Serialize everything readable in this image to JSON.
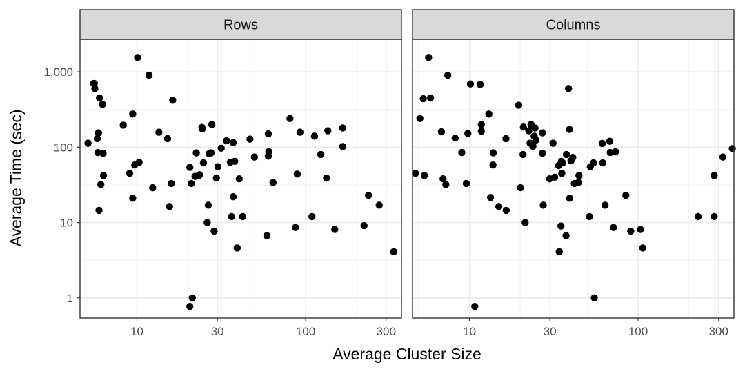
{
  "chart_data": {
    "type": "scatter",
    "xlabel": "Average Cluster Size",
    "ylabel": "Average Time (sec)",
    "x_scale": "log10",
    "y_scale": "log10",
    "xlim": [
      4.6,
      370
    ],
    "ylim": [
      0.54,
      2700
    ],
    "x_ticks": [
      {
        "value": 10,
        "label": "10"
      },
      {
        "value": 30,
        "label": "30"
      },
      {
        "value": 100,
        "label": "100"
      },
      {
        "value": 300,
        "label": "300"
      }
    ],
    "y_ticks": [
      {
        "value": 1,
        "label": "1"
      },
      {
        "value": 10,
        "label": "10"
      },
      {
        "value": 100,
        "label": "100"
      },
      {
        "value": 1000,
        "label": "1,000"
      }
    ],
    "x_minor_gridlines": [
      5,
      20,
      50,
      200
    ],
    "y_minor_gridlines": [
      3.16,
      31.6,
      316
    ],
    "grid": true,
    "point_color": "#000000",
    "panel_strip_fill": "#d9d9d9",
    "facets": [
      {
        "name": "Rows",
        "points": [
          [
            5.13,
            113
          ],
          [
            5.54,
            700
          ],
          [
            5.59,
            700
          ],
          [
            5.63,
            600
          ],
          [
            5.82,
            130
          ],
          [
            5.87,
            85
          ],
          [
            5.92,
            155
          ],
          [
            5.96,
            14.5
          ],
          [
            6.0,
            450
          ],
          [
            6.11,
            32
          ],
          [
            6.25,
            370
          ],
          [
            6.3,
            83
          ],
          [
            6.34,
            42
          ],
          [
            8.3,
            196
          ],
          [
            9.06,
            45
          ],
          [
            9.44,
            275
          ],
          [
            9.44,
            21
          ],
          [
            9.7,
            58
          ],
          [
            10.1,
            1550
          ],
          [
            10.3,
            63
          ],
          [
            11.8,
            900
          ],
          [
            12.4,
            29
          ],
          [
            13.5,
            158
          ],
          [
            15.2,
            130
          ],
          [
            15.6,
            16.3
          ],
          [
            16.0,
            33
          ],
          [
            16.3,
            420
          ],
          [
            20.6,
            0.77
          ],
          [
            20.6,
            54
          ],
          [
            21.0,
            33
          ],
          [
            21.3,
            1.0
          ],
          [
            22.1,
            41
          ],
          [
            22.5,
            84
          ],
          [
            23.3,
            42
          ],
          [
            23.5,
            43
          ],
          [
            24.3,
            183
          ],
          [
            24.4,
            175
          ],
          [
            24.8,
            62
          ],
          [
            26.1,
            10
          ],
          [
            26.5,
            17
          ],
          [
            26.8,
            82
          ],
          [
            27.5,
            84
          ],
          [
            27.8,
            200
          ],
          [
            28.7,
            7.7
          ],
          [
            29.6,
            39
          ],
          [
            30.2,
            55
          ],
          [
            31.6,
            97
          ],
          [
            34.0,
            122
          ],
          [
            35.8,
            63
          ],
          [
            36.4,
            12
          ],
          [
            37.2,
            115
          ],
          [
            37.2,
            22
          ],
          [
            38.0,
            65
          ],
          [
            39.3,
            4.6
          ],
          [
            40.4,
            38
          ],
          [
            42.3,
            12
          ],
          [
            46.8,
            128
          ],
          [
            49.7,
            74
          ],
          [
            59.0,
            6.7
          ],
          [
            60.1,
            76
          ],
          [
            60.1,
            150
          ],
          [
            60.5,
            87
          ],
          [
            64.1,
            34
          ],
          [
            80.8,
            240
          ],
          [
            87.1,
            8.6
          ],
          [
            89.2,
            44
          ],
          [
            92.6,
            158
          ],
          [
            109.1,
            12
          ],
          [
            112.9,
            140
          ],
          [
            123.1,
            80
          ],
          [
            133.0,
            39
          ],
          [
            135.5,
            165
          ],
          [
            148.9,
            8.1
          ],
          [
            166.0,
            102
          ],
          [
            166.0,
            180
          ],
          [
            222.0,
            9.1
          ],
          [
            236.0,
            23
          ],
          [
            273.0,
            17
          ],
          [
            333.0,
            4.1
          ]
        ]
      },
      {
        "name": "Columns",
        "points": [
          [
            4.79,
            45
          ],
          [
            5.09,
            240
          ],
          [
            5.33,
            440
          ],
          [
            5.41,
            42
          ],
          [
            5.73,
            1550
          ],
          [
            5.88,
            450
          ],
          [
            6.83,
            160
          ],
          [
            6.98,
            38
          ],
          [
            7.25,
            32
          ],
          [
            7.45,
            900
          ],
          [
            8.23,
            132
          ],
          [
            9.01,
            85
          ],
          [
            9.59,
            33
          ],
          [
            9.79,
            152
          ],
          [
            10.14,
            690
          ],
          [
            10.76,
            0.77
          ],
          [
            11.59,
            680
          ],
          [
            11.77,
            163
          ],
          [
            11.77,
            200
          ],
          [
            13.04,
            275
          ],
          [
            13.34,
            21.5
          ],
          [
            13.8,
            58
          ],
          [
            13.84,
            84
          ],
          [
            14.95,
            16.3
          ],
          [
            16.47,
            130
          ],
          [
            16.52,
            14.5
          ],
          [
            19.6,
            360
          ],
          [
            20.1,
            29
          ],
          [
            20.8,
            80
          ],
          [
            20.9,
            185
          ],
          [
            21.4,
            10
          ],
          [
            22.5,
            165
          ],
          [
            22.9,
            113
          ],
          [
            23.2,
            200
          ],
          [
            23.8,
            103
          ],
          [
            24.2,
            140
          ],
          [
            24.5,
            180
          ],
          [
            24.8,
            124
          ],
          [
            27.1,
            83
          ],
          [
            27.1,
            155
          ],
          [
            27.4,
            17
          ],
          [
            29.9,
            38
          ],
          [
            31.3,
            113
          ],
          [
            32.0,
            40
          ],
          [
            33.8,
            57
          ],
          [
            34.1,
            4.1
          ],
          [
            34.9,
            9
          ],
          [
            35.1,
            65
          ],
          [
            35.3,
            45
          ],
          [
            35.7,
            62
          ],
          [
            37.4,
            6.7
          ],
          [
            37.6,
            80
          ],
          [
            38.7,
            600
          ],
          [
            39.2,
            172
          ],
          [
            39.3,
            21
          ],
          [
            40.0,
            66
          ],
          [
            41.0,
            73
          ],
          [
            41.9,
            33
          ],
          [
            44.3,
            34
          ],
          [
            44.6,
            42
          ],
          [
            51.5,
            12
          ],
          [
            52.1,
            55
          ],
          [
            54.4,
            62
          ],
          [
            55.0,
            1.0
          ],
          [
            61.2,
            112
          ],
          [
            61.7,
            62
          ],
          [
            63.7,
            17
          ],
          [
            68.0,
            120
          ],
          [
            68.4,
            85
          ],
          [
            71.5,
            8.6
          ],
          [
            73.5,
            87
          ],
          [
            84.6,
            23
          ],
          [
            90.4,
            7.7
          ],
          [
            103.3,
            8.1
          ],
          [
            106.6,
            4.6
          ],
          [
            226.7,
            12
          ],
          [
            282.5,
            12
          ],
          [
            282.5,
            42
          ],
          [
            318.1,
            74
          ],
          [
            361.8,
            96
          ]
        ]
      }
    ]
  }
}
